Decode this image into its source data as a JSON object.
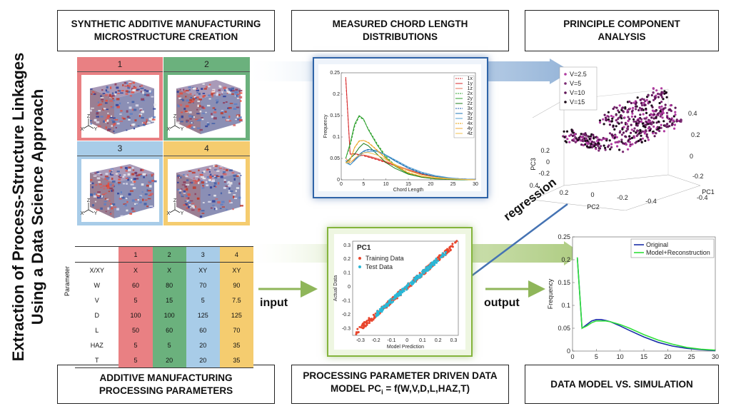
{
  "vertical_title": {
    "line1": "Extraction of Process-Structure Linkages",
    "line2": "Using a Data Science Approach"
  },
  "headers": {
    "synthetic": {
      "line1": "SYNTHETIC ADDITIVE MANUFACTURING",
      "line2": "MICROSTRUCTURE CREATION"
    },
    "chord": {
      "line1": "MEASURED CHORD LENGTH",
      "line2": "DISTRIBUTIONS"
    },
    "pca": {
      "line1": "PRINCIPLE COMPONENT",
      "line2": "ANALYSIS"
    },
    "params": {
      "line1": "ADDITIVE MANUFACTURING",
      "line2": "PROCESSING PARAMETERS"
    },
    "model": {
      "line1": "PROCESSING PARAMETER DRIVEN DATA",
      "line2_prefix": "MODEL PC",
      "line2_sub": "i",
      "line2_suffix": " = f(W,V,D,L,HAZ,T)"
    },
    "sim": {
      "line1": "DATA MODEL VS. SIMULATION"
    }
  },
  "microstructures": [
    {
      "number": "1",
      "color": "#e98083"
    },
    {
      "number": "2",
      "color": "#6bb17d"
    },
    {
      "number": "3",
      "color": "#a8cce8"
    },
    {
      "number": "4",
      "color": "#f5cc6f"
    }
  ],
  "axis_triad": {
    "z": "Z",
    "x": "X",
    "y": "Y"
  },
  "param_table": {
    "side_label": "Parameter",
    "columns": [
      "1",
      "2",
      "3",
      "4"
    ],
    "column_colors": [
      "#e98083",
      "#6bb17d",
      "#a8cce8",
      "#f5cc6f"
    ],
    "rows": [
      {
        "name": "X/XY",
        "values": [
          "X",
          "X",
          "XY",
          "XY"
        ]
      },
      {
        "name": "W",
        "values": [
          "60",
          "80",
          "70",
          "90"
        ]
      },
      {
        "name": "V",
        "values": [
          "5",
          "15",
          "5",
          "7.5"
        ]
      },
      {
        "name": "D",
        "values": [
          "100",
          "100",
          "125",
          "125"
        ]
      },
      {
        "name": "L",
        "values": [
          "50",
          "60",
          "60",
          "70"
        ]
      },
      {
        "name": "HAZ",
        "values": [
          "5",
          "5",
          "20",
          "35"
        ]
      },
      {
        "name": "T",
        "values": [
          "5",
          "20",
          "20",
          "35"
        ]
      }
    ]
  },
  "labels": {
    "input": "input",
    "output": "output",
    "regression": "regression"
  },
  "chart_data": [
    {
      "type": "line",
      "title": "",
      "xlabel": "Chord Length",
      "ylabel": "Frequency",
      "xlim": [
        0,
        30
      ],
      "ylim": [
        0,
        0.25
      ],
      "x_ticks": [
        "0",
        "5",
        "10",
        "15",
        "20",
        "25",
        "30"
      ],
      "y_ticks": [
        "0",
        "0.05",
        "0.1",
        "0.15",
        "0.2",
        "0.25"
      ],
      "x": [
        1,
        2,
        3,
        4,
        5,
        6,
        8,
        10,
        12,
        15,
        18,
        21,
        24,
        27,
        30
      ],
      "series": [
        {
          "name": "1x",
          "color": "#d62728",
          "dash": true,
          "values": [
            0.235,
            0.06,
            0.06,
            0.058,
            0.056,
            0.053,
            0.047,
            0.04,
            0.033,
            0.022,
            0.013,
            0.007,
            0.004,
            0.002,
            0.001
          ]
        },
        {
          "name": "1y",
          "color": "#d62728",
          "dash": false,
          "values": [
            0.24,
            0.06,
            0.061,
            0.059,
            0.057,
            0.054,
            0.048,
            0.041,
            0.033,
            0.022,
            0.013,
            0.007,
            0.004,
            0.002,
            0.001
          ]
        },
        {
          "name": "1z",
          "color": "#e8705a",
          "dash": false,
          "values": [
            0.05,
            0.04,
            0.048,
            0.055,
            0.058,
            0.056,
            0.05,
            0.043,
            0.035,
            0.024,
            0.015,
            0.008,
            0.004,
            0.002,
            0.001
          ]
        },
        {
          "name": "2x",
          "color": "#2ca02c",
          "dash": true,
          "values": [
            0.05,
            0.08,
            0.125,
            0.148,
            0.14,
            0.12,
            0.085,
            0.055,
            0.034,
            0.015,
            0.007,
            0.003,
            0.001,
            0.0,
            0.0
          ]
        },
        {
          "name": "2y",
          "color": "#2ca02c",
          "dash": false,
          "values": [
            0.05,
            0.085,
            0.13,
            0.15,
            0.142,
            0.118,
            0.082,
            0.052,
            0.032,
            0.014,
            0.006,
            0.002,
            0.001,
            0.0,
            0.0
          ]
        },
        {
          "name": "2z",
          "color": "#1e7d1e",
          "dash": false,
          "values": [
            0.04,
            0.05,
            0.06,
            0.075,
            0.085,
            0.08,
            0.06,
            0.04,
            0.027,
            0.013,
            0.006,
            0.003,
            0.001,
            0.0,
            0.0
          ]
        },
        {
          "name": "3x",
          "color": "#1f5fb0",
          "dash": true,
          "values": [
            0.045,
            0.035,
            0.045,
            0.058,
            0.066,
            0.07,
            0.068,
            0.058,
            0.045,
            0.028,
            0.016,
            0.008,
            0.004,
            0.002,
            0.001
          ]
        },
        {
          "name": "3y",
          "color": "#1f77b4",
          "dash": false,
          "values": [
            0.045,
            0.035,
            0.046,
            0.059,
            0.067,
            0.071,
            0.068,
            0.057,
            0.044,
            0.027,
            0.015,
            0.008,
            0.004,
            0.002,
            0.001
          ]
        },
        {
          "name": "3z",
          "color": "#56a0d3",
          "dash": false,
          "values": [
            0.04,
            0.035,
            0.045,
            0.055,
            0.063,
            0.066,
            0.066,
            0.058,
            0.047,
            0.03,
            0.018,
            0.01,
            0.005,
            0.002,
            0.001
          ]
        },
        {
          "name": "4x",
          "color": "#e69b00",
          "dash": true,
          "values": [
            0.04,
            0.045,
            0.075,
            0.09,
            0.092,
            0.088,
            0.07,
            0.05,
            0.034,
            0.017,
            0.008,
            0.004,
            0.002,
            0.001,
            0.0
          ]
        },
        {
          "name": "4y",
          "color": "#f0a830",
          "dash": false,
          "values": [
            0.04,
            0.046,
            0.076,
            0.091,
            0.092,
            0.087,
            0.069,
            0.049,
            0.033,
            0.016,
            0.008,
            0.004,
            0.002,
            0.001,
            0.0
          ]
        },
        {
          "name": "4z",
          "color": "#f2c14e",
          "dash": false,
          "values": [
            0.04,
            0.04,
            0.05,
            0.058,
            0.063,
            0.064,
            0.058,
            0.047,
            0.036,
            0.021,
            0.011,
            0.006,
            0.003,
            0.001,
            0.0
          ]
        }
      ]
    },
    {
      "type": "scatter",
      "title": "",
      "xlabel": "PC1",
      "ylabel": "PC3",
      "zlabel": "PC2",
      "legend": "top-left",
      "x_ticks": [
        "0.4",
        "0.2",
        "0",
        "-0.2",
        "-0.4"
      ],
      "y_ticks": [
        "0.4",
        "0.2",
        "0",
        "-0.2"
      ],
      "z_ticks": [
        "0.4",
        "0.2",
        "0",
        "-0.2",
        "-0.4"
      ],
      "z_axis_ticks": [
        "0.2",
        "0",
        "-0.2"
      ],
      "series": [
        {
          "name": "V=2.5",
          "color": "#b03aa0"
        },
        {
          "name": "V=5",
          "color": "#7a2a72"
        },
        {
          "name": "V=10",
          "color": "#5e1457"
        },
        {
          "name": "V=15",
          "color": "#1a0a18"
        }
      ]
    },
    {
      "type": "scatter",
      "title": "PC1",
      "xlabel": "Model Prediction",
      "ylabel": "Actual Data",
      "xlim": [
        -0.35,
        0.33
      ],
      "ylim": [
        -0.35,
        0.33
      ],
      "x_ticks": [
        "-0.3",
        "-0.2",
        "-0.1",
        "0",
        "0.1",
        "0.2",
        "0.3"
      ],
      "y_ticks": [
        "-0.3",
        "-0.2",
        "-0.1",
        "0",
        "0.1",
        "0.2",
        "0.3"
      ],
      "series": [
        {
          "name": "Training Data",
          "color": "#e8452c"
        },
        {
          "name": "Test Data",
          "color": "#2ab7d6"
        }
      ]
    },
    {
      "type": "line",
      "title": "",
      "xlabel": "",
      "ylabel": "Frequency",
      "xlim": [
        0,
        30
      ],
      "ylim": [
        0,
        0.25
      ],
      "legend": "top-right",
      "x_ticks": [
        "0",
        "5",
        "10",
        "15",
        "20",
        "25",
        "30"
      ],
      "y_ticks": [
        "0",
        "0.05",
        "0.1",
        "0.15",
        "0.2",
        "0.25"
      ],
      "x": [
        1,
        2,
        3,
        4,
        5,
        6,
        7,
        8,
        10,
        12,
        15,
        18,
        21,
        24,
        27,
        30
      ],
      "series": [
        {
          "name": "Original",
          "color": "#1a2fa8",
          "values": [
            0.205,
            0.05,
            0.058,
            0.066,
            0.069,
            0.069,
            0.067,
            0.064,
            0.055,
            0.045,
            0.031,
            0.019,
            0.011,
            0.006,
            0.003,
            0.001
          ]
        },
        {
          "name": "Model+Reconstruction",
          "color": "#2ee03a",
          "values": [
            0.205,
            0.05,
            0.055,
            0.062,
            0.066,
            0.066,
            0.066,
            0.064,
            0.058,
            0.05,
            0.036,
            0.024,
            0.015,
            0.008,
            0.004,
            0.002
          ]
        }
      ]
    }
  ]
}
